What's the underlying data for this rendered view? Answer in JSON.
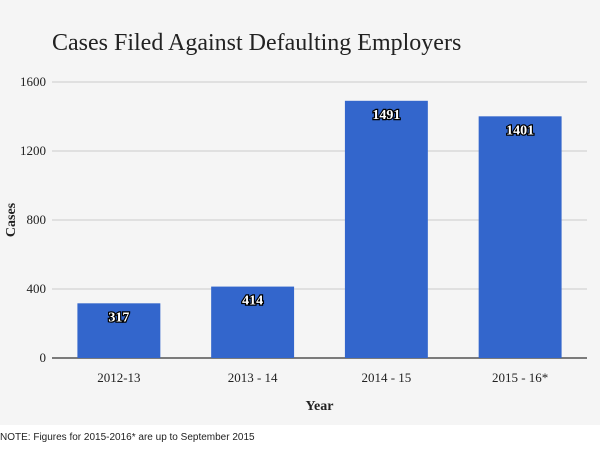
{
  "chart_data": {
    "type": "bar",
    "title": "Cases Filed Against Defaulting Employers",
    "xlabel": "Year",
    "ylabel": "Cases",
    "categories": [
      "2012-13",
      "2013 - 14",
      "2014 - 15",
      "2015 - 16*"
    ],
    "values": [
      317,
      414,
      1491,
      1401
    ],
    "data_labels": [
      "317",
      "414",
      "1491",
      "1401"
    ],
    "ylim": [
      0,
      1600
    ],
    "yticks": [
      0,
      400,
      800,
      1200,
      1600
    ],
    "grid": true,
    "legend": "none",
    "colors": {
      "bar": "#3366cc",
      "grid": "#cccccc",
      "axis": "#333333",
      "background": "#f5f5f5"
    }
  },
  "note": "NOTE: Figures for 2015-2016* are up to September 2015"
}
